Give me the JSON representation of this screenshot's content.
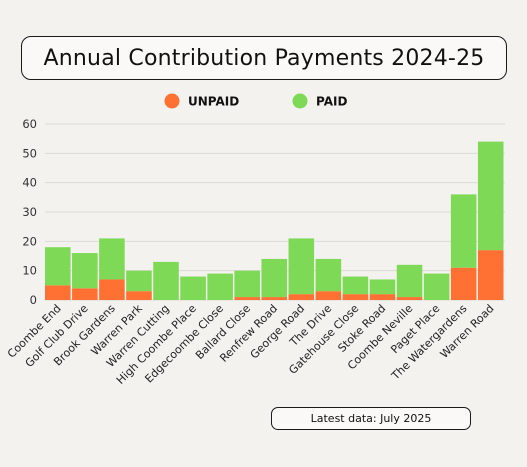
{
  "chart_data": {
    "type": "bar",
    "stacked": true,
    "title": "Annual Contribution Payments 2024-25",
    "xlabel": "",
    "ylabel": "",
    "ylim": [
      0,
      60
    ],
    "yticks": [
      0,
      10,
      20,
      30,
      40,
      50,
      60
    ],
    "grid": true,
    "legend_position": "top",
    "categories": [
      "Coombe End",
      "Golf Club Drive",
      "Brook Gardens",
      "Warren Park",
      "Warren Cutting",
      "High Coombe Place",
      "Edgecoombe Close",
      "Ballard Close",
      "Renfrew Road",
      "George Road",
      "The Drive",
      "Gatehouse Close",
      "Stoke Road",
      "Coombe Neville",
      "Paget Place",
      "The Watergardens",
      "Warren Road"
    ],
    "series": [
      {
        "name": "UNPAID",
        "color": "#ff7033",
        "values": [
          5,
          4,
          7,
          3,
          0,
          0,
          0,
          1,
          1,
          2,
          3,
          2,
          2,
          1,
          0,
          11,
          17
        ]
      },
      {
        "name": "PAID",
        "color": "#7ed957",
        "values": [
          13,
          12,
          14,
          7,
          13,
          8,
          9,
          9,
          13,
          19,
          11,
          6,
          5,
          11,
          9,
          25,
          37
        ]
      }
    ]
  },
  "footer": {
    "text": "Latest data: July 2025"
  }
}
